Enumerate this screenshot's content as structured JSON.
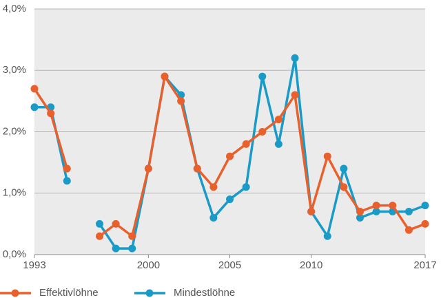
{
  "chart_data": {
    "type": "line",
    "x": [
      1993,
      1994,
      1995,
      1996,
      1997,
      1998,
      1999,
      2000,
      2001,
      2002,
      2003,
      2004,
      2005,
      2006,
      2007,
      2008,
      2009,
      2010,
      2011,
      2012,
      2013,
      2014,
      2015,
      2016,
      2017
    ],
    "series": [
      {
        "name": "Effektivlöhne",
        "color": "#e8602c",
        "values": [
          2.7,
          2.3,
          1.4,
          null,
          0.3,
          0.5,
          0.3,
          1.4,
          2.9,
          2.5,
          1.4,
          1.1,
          1.6,
          1.8,
          2.0,
          2.2,
          2.6,
          0.7,
          1.6,
          1.1,
          0.7,
          0.8,
          0.8,
          0.4,
          0.5
        ]
      },
      {
        "name": "Mindestlöhne",
        "color": "#1a9bc7",
        "values": [
          2.4,
          2.4,
          1.2,
          null,
          0.5,
          0.1,
          0.1,
          1.4,
          2.9,
          2.6,
          1.4,
          0.6,
          0.9,
          1.1,
          2.9,
          1.8,
          3.2,
          0.7,
          0.3,
          1.4,
          0.6,
          0.7,
          0.7,
          0.7,
          0.8
        ]
      }
    ],
    "xlim": [
      1993,
      2017
    ],
    "xticks": [
      1993,
      2000,
      2005,
      2010,
      2017
    ],
    "ylim": [
      0,
      4
    ],
    "yticks": [
      {
        "value": 0,
        "label": "0,0%"
      },
      {
        "value": 1,
        "label": "1,0%"
      },
      {
        "value": 2,
        "label": "2,0%"
      },
      {
        "value": 3,
        "label": "3,0%"
      },
      {
        "value": 4,
        "label": "4,0%"
      }
    ],
    "grid": true,
    "legend": "bottom-left"
  }
}
